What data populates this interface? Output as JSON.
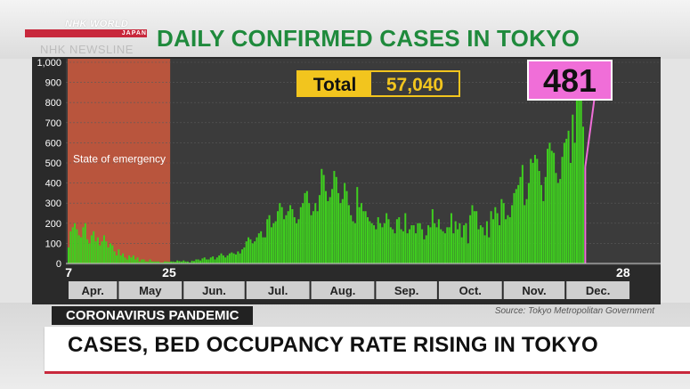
{
  "logo": {
    "brand": "NHK WORLD",
    "country": "JAPAN"
  },
  "newsline": "NHK NEWSLINE",
  "colors": {
    "title_green": "#1f8a3c",
    "bars": "#3fcf1f",
    "emergency": "#b9553d",
    "total_box": "#f2c51e",
    "callout": "#f06ed8",
    "headline_rule": "#c8283c"
  },
  "chart_data": {
    "type": "bar",
    "title": "DAILY CONFIRMED CASES IN TOKYO",
    "y_ticks": [
      "0",
      "100",
      "200",
      "300",
      "400",
      "500",
      "600",
      "700",
      "800",
      "900",
      "1,000"
    ],
    "ylim": [
      0,
      1000
    ],
    "grid": true,
    "date_range": [
      "2020-04-07",
      "2020-12-28"
    ],
    "x_day_labels": [
      "7",
      "25",
      "28"
    ],
    "months": [
      "Apr.",
      "May",
      "Jun.",
      "Jul.",
      "Aug.",
      "Sep.",
      "Oct.",
      "Nov.",
      "Dec."
    ],
    "shaded_region": {
      "label": "State of emergency",
      "start": "2020-04-07",
      "end": "2020-05-25"
    },
    "total_label": "Total",
    "total_value": "57,040",
    "callout_value": "481",
    "callout_date": "2020-12-28",
    "series": [
      {
        "values": [
          80,
          160,
          180,
          200,
          170,
          140,
          130,
          180,
          200,
          120,
          100,
          140,
          160,
          110,
          130,
          90,
          110,
          140,
          110,
          80,
          100,
          90,
          60,
          40,
          70,
          40,
          50,
          30,
          20,
          40,
          30,
          40,
          20,
          30,
          10,
          20,
          20,
          10,
          10,
          20,
          10,
          10,
          10,
          10,
          5,
          5,
          10,
          10,
          8,
          10,
          10,
          8,
          15,
          12,
          10,
          15,
          10,
          10,
          5,
          14,
          12,
          20,
          20,
          15,
          25,
          30,
          20,
          20,
          30,
          35,
          20,
          30,
          40,
          50,
          40,
          30,
          40,
          50,
          55,
          50,
          45,
          60,
          50,
          70,
          80,
          110,
          130,
          120,
          100,
          110,
          130,
          150,
          160,
          130,
          130,
          220,
          240,
          180,
          200,
          210,
          260,
          300,
          280,
          220,
          240,
          260,
          290,
          270,
          230,
          200,
          220,
          280,
          300,
          350,
          360,
          300,
          240,
          260,
          300,
          260,
          340,
          470,
          440,
          360,
          310,
          330,
          370,
          460,
          430,
          350,
          300,
          320,
          400,
          360,
          290,
          240,
          210,
          200,
          380,
          280,
          300,
          260,
          260,
          230,
          210,
          200,
          190,
          170,
          230,
          200,
          180,
          200,
          250,
          220,
          180,
          170,
          150,
          220,
          230,
          170,
          160,
          250,
          150,
          170,
          190,
          190,
          150,
          200,
          200,
          170,
          120,
          140,
          190,
          180,
          270,
          200,
          180,
          220,
          170,
          160,
          150,
          180,
          180,
          250,
          150,
          210,
          170,
          200,
          130,
          190,
          200,
          100,
          240,
          290,
          260,
          260,
          170,
          190,
          180,
          140,
          210,
          130,
          260,
          220,
          280,
          250,
          190,
          320,
          300,
          220,
          240,
          230,
          290,
          350,
          370,
          390,
          430,
          490,
          290,
          320,
          400,
          520,
          500,
          540,
          520,
          460,
          390,
          310,
          430,
          570,
          600,
          560,
          550,
          450,
          400,
          420,
          530,
          600,
          620,
          660,
          500,
          740,
          600,
          820,
          890,
          950,
          680,
          480
        ]
      }
    ]
  },
  "tag": "CORONAVIRUS PANDEMIC",
  "source": "Source: Tokyo Metropolitan Government",
  "headline": "CASES, BED OCCUPANCY RATE RISING IN TOKYO"
}
